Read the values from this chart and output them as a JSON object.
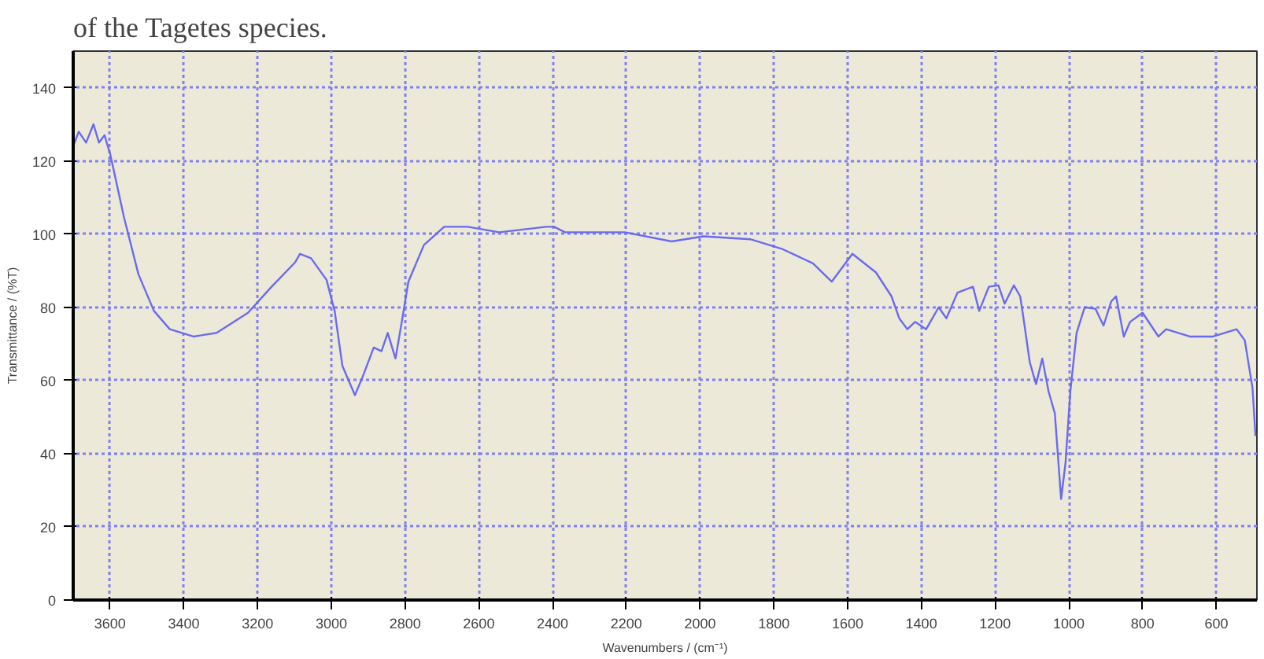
{
  "chart_data": {
    "type": "line",
    "title": "of the Tagetes species.",
    "xlabel": "Wavenumbers / (cm⁻¹)",
    "ylabel": "Transmittance / (%T)",
    "xlim": [
      3700,
      490
    ],
    "ylim": [
      0,
      150
    ],
    "xticks": [
      3600,
      3400,
      3200,
      3000,
      2800,
      2600,
      2400,
      2200,
      2000,
      1800,
      1600,
      1400,
      1200,
      1000,
      800,
      600
    ],
    "yticks": [
      0,
      20,
      40,
      60,
      80,
      100,
      120,
      140
    ],
    "grid": true,
    "marker": "none",
    "line_style": "solid",
    "series": [
      {
        "color": "#6a6af0",
        "x": [
          3700,
          3685,
          3665,
          3645,
          3630,
          3615,
          3600,
          3562,
          3523,
          3481,
          3438,
          3374,
          3311,
          3226,
          3162,
          3098,
          3085,
          3055,
          3013,
          2991,
          2970,
          2936,
          2915,
          2885,
          2864,
          2847,
          2826,
          2809,
          2791,
          2749,
          2694,
          2630,
          2545,
          2417,
          2396,
          2366,
          2204,
          2077,
          1991,
          1864,
          1779,
          1694,
          1643,
          1587,
          1523,
          1481,
          1460,
          1438,
          1417,
          1387,
          1353,
          1332,
          1302,
          1260,
          1243,
          1217,
          1191,
          1174,
          1149,
          1132,
          1123,
          1106,
          1089,
          1072,
          1055,
          1038,
          1021,
          1009,
          996,
          979,
          957,
          928,
          906,
          885,
          872,
          851,
          834,
          800,
          757,
          736,
          672,
          609,
          545,
          523,
          502,
          494
        ],
        "values": [
          124,
          128,
          125,
          130,
          125,
          127,
          122,
          104.5,
          89,
          79,
          74,
          72,
          73,
          78.5,
          85.6,
          92.3,
          94.6,
          93.4,
          87.5,
          79,
          64,
          56,
          61,
          69,
          68,
          73,
          66,
          76,
          87,
          97,
          102,
          102,
          100.5,
          102,
          102,
          100.5,
          100.5,
          98,
          99.4,
          98.6,
          96,
          92,
          87,
          94.6,
          89.5,
          83,
          77,
          74,
          76,
          74,
          80,
          77,
          84,
          85.6,
          79,
          85.6,
          86,
          81,
          86,
          83,
          77,
          65,
          59,
          66,
          57,
          51,
          27.6,
          37.5,
          57,
          73,
          80,
          79.6,
          75,
          81.6,
          83,
          72,
          76,
          78.5,
          72,
          74,
          72,
          72,
          74,
          71,
          58,
          45
        ]
      }
    ]
  }
}
